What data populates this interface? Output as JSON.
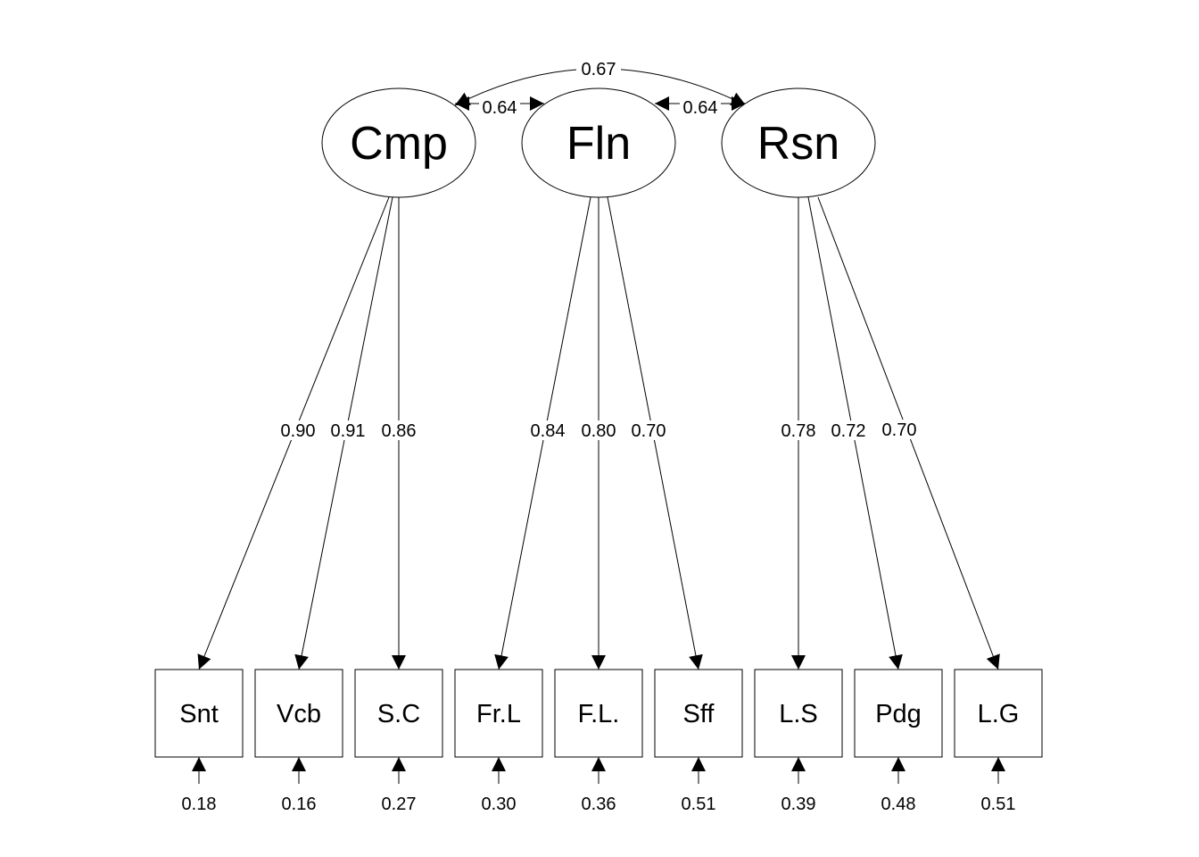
{
  "latents": [
    {
      "id": "Cmp",
      "label": "Cmp"
    },
    {
      "id": "Fln",
      "label": "Fln"
    },
    {
      "id": "Rsn",
      "label": "Rsn"
    }
  ],
  "observed": [
    {
      "id": "Snt",
      "label": "Snt",
      "residual": "0.18"
    },
    {
      "id": "Vcb",
      "label": "Vcb",
      "residual": "0.16"
    },
    {
      "id": "S.C",
      "label": "S.C",
      "residual": "0.27"
    },
    {
      "id": "Fr.L",
      "label": "Fr.L",
      "residual": "0.30"
    },
    {
      "id": "F.L.",
      "label": "F.L.",
      "residual": "0.36"
    },
    {
      "id": "Sff",
      "label": "Sff",
      "residual": "0.51"
    },
    {
      "id": "L.S",
      "label": "L.S",
      "residual": "0.39"
    },
    {
      "id": "Pdg",
      "label": "Pdg",
      "residual": "0.48"
    },
    {
      "id": "L.G",
      "label": "L.G",
      "residual": "0.51"
    }
  ],
  "loadings": [
    {
      "from": "Cmp",
      "to": "Snt",
      "value": "0.90"
    },
    {
      "from": "Cmp",
      "to": "Vcb",
      "value": "0.91"
    },
    {
      "from": "Cmp",
      "to": "S.C",
      "value": "0.86"
    },
    {
      "from": "Fln",
      "to": "Fr.L",
      "value": "0.84"
    },
    {
      "from": "Fln",
      "to": "F.L.",
      "value": "0.80"
    },
    {
      "from": "Fln",
      "to": "Sff",
      "value": "0.70"
    },
    {
      "from": "Rsn",
      "to": "L.S",
      "value": "0.78"
    },
    {
      "from": "Rsn",
      "to": "Pdg",
      "value": "0.72"
    },
    {
      "from": "Rsn",
      "to": "L.G",
      "value": "0.70"
    }
  ],
  "covariances": [
    {
      "a": "Cmp",
      "b": "Fln",
      "value": "0.64"
    },
    {
      "a": "Fln",
      "b": "Rsn",
      "value": "0.64"
    },
    {
      "a": "Cmp",
      "b": "Rsn",
      "value": "0.67"
    }
  ]
}
